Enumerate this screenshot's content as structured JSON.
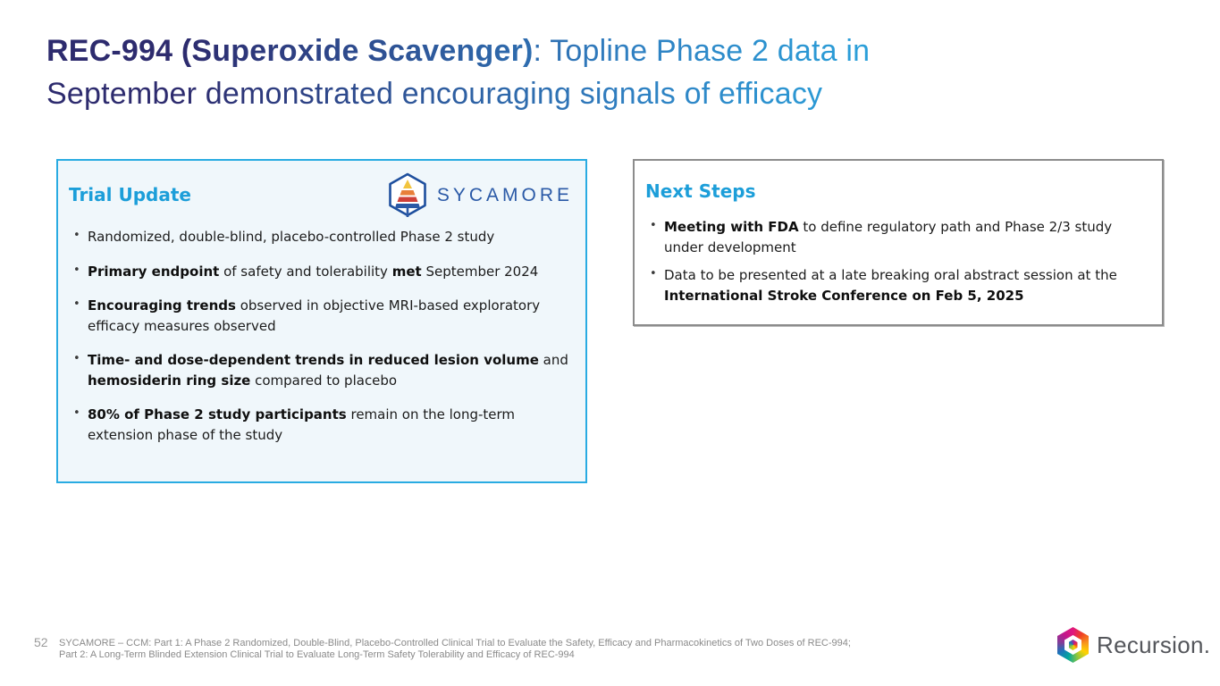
{
  "slide": {
    "colors": {
      "title_dark": "#2d2b6e",
      "title_light": "#29abe2",
      "accent_cyan": "#29abe2",
      "heading_cyan": "#1c9ed9",
      "card_bg": "#f0f7fb",
      "gray_border": "#8c8c8c",
      "text": "#1b1b1b",
      "footnote_gray": "#8a8a8a"
    },
    "title": {
      "bold": "REC-994 (Superoxide Scavenger)",
      "regular_line1": ": Topline Phase 2 data in",
      "regular_line2": "September demonstrated encouraging signals of efficacy"
    },
    "trial_update": {
      "heading": "Trial Update",
      "logo_wordmark": "SYCAMORE",
      "bullets": [
        {
          "runs": [
            {
              "t": "Randomized, double-blind, placebo-controlled Phase 2 study"
            }
          ]
        },
        {
          "runs": [
            {
              "t": "Primary endpoint",
              "b": true
            },
            {
              "t": " of safety and tolerability "
            },
            {
              "t": "met",
              "b": true
            },
            {
              "t": " September 2024"
            }
          ]
        },
        {
          "runs": [
            {
              "t": "Encouraging trends",
              "b": true
            },
            {
              "t": " observed in objective MRI-based exploratory efficacy measures observed"
            }
          ]
        },
        {
          "runs": [
            {
              "t": "Time- and dose-dependent trends in reduced lesion volume",
              "b": true
            },
            {
              "t": " and "
            },
            {
              "t": "hemosiderin ring size",
              "b": true
            },
            {
              "t": " compared to placebo"
            }
          ]
        },
        {
          "runs": [
            {
              "t": "80% of Phase 2 study participants",
              "b": true
            },
            {
              "t": " remain on the long-term extension phase of the study"
            }
          ]
        }
      ]
    },
    "next_steps": {
      "heading": "Next Steps",
      "bullets": [
        {
          "runs": [
            {
              "t": "Meeting with FDA",
              "b": true
            },
            {
              "t": " to define regulatory path and Phase 2/3 study under development"
            }
          ]
        },
        {
          "runs": [
            {
              "t": "Data to be presented at a late breaking oral abstract session at the "
            },
            {
              "t": "International Stroke Conference on Feb 5, 2025",
              "b": true
            }
          ]
        }
      ]
    },
    "footer": {
      "page_number": "52",
      "footnote_line1": "SYCAMORE – CCM: Part 1: A Phase 2 Randomized, Double-Blind, Placebo-Controlled Clinical Trial to Evaluate the Safety, Efficacy and Pharmacokinetics of Two Doses of REC-994;",
      "footnote_line2": "Part 2: A Long-Term Blinded Extension Clinical Trial to Evaluate Long-Term Safety Tolerability and Efficacy of REC-994",
      "brand": "Recursion."
    }
  }
}
